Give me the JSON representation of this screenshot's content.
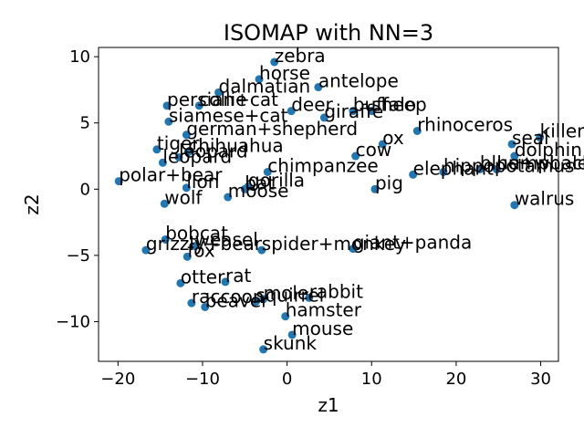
{
  "chart_data": {
    "type": "scatter",
    "title": "ISOMAP with NN=3",
    "xlabel": "z1",
    "ylabel": "z2",
    "xlim": [
      -22.3,
      32.1
    ],
    "ylim": [
      -13.0,
      10.7
    ],
    "xticks": [
      -20,
      -10,
      0,
      10,
      20,
      30
    ],
    "yticks": [
      -10,
      -5,
      0,
      5,
      10
    ],
    "grid": false,
    "marker_color": "#1f77b4",
    "points": [
      {
        "label": "zebra",
        "x": -1.5,
        "y": 9.6
      },
      {
        "label": "horse",
        "x": -3.3,
        "y": 8.3
      },
      {
        "label": "antelope",
        "x": 3.7,
        "y": 7.7
      },
      {
        "label": "dalmatian",
        "x": -8.1,
        "y": 7.3
      },
      {
        "label": "persian+cat",
        "x": -14.2,
        "y": 6.3
      },
      {
        "label": "collie",
        "x": -10.4,
        "y": 6.3
      },
      {
        "label": "deer",
        "x": 0.5,
        "y": 5.9
      },
      {
        "label": "giraffe",
        "x": 4.4,
        "y": 5.4
      },
      {
        "label": "buffalo",
        "x": 7.8,
        "y": 5.9
      },
      {
        "label": "sheep",
        "x": 10.0,
        "y": 5.9
      },
      {
        "label": "siamese+cat",
        "x": -14.0,
        "y": 5.1
      },
      {
        "label": "rhinoceros",
        "x": 15.4,
        "y": 4.4
      },
      {
        "label": "killer+whale",
        "x": 29.9,
        "y": 3.9
      },
      {
        "label": "german+shepherd",
        "x": -11.9,
        "y": 4.1
      },
      {
        "label": "seal",
        "x": 26.6,
        "y": 3.4
      },
      {
        "label": "tiger",
        "x": -15.4,
        "y": 3.0
      },
      {
        "label": "ox",
        "x": 11.3,
        "y": 3.4
      },
      {
        "label": "dolphin",
        "x": 26.9,
        "y": 2.5
      },
      {
        "label": "chihuahua",
        "x": -11.7,
        "y": 2.8
      },
      {
        "label": "leopard",
        "x": -12.8,
        "y": 2.4
      },
      {
        "label": "cow",
        "x": 8.1,
        "y": 2.5
      },
      {
        "label": "leopard",
        "x": -14.7,
        "y": 2.0
      },
      {
        "label": "chimpanzee",
        "x": -2.3,
        "y": 1.3
      },
      {
        "label": "elephant",
        "x": 14.9,
        "y": 1.1
      },
      {
        "label": "hippopotamus",
        "x": 18.5,
        "y": 1.3
      },
      {
        "label": "blue+whale",
        "x": 22.8,
        "y": 1.5
      },
      {
        "label": "humpback+whale",
        "x": 24.8,
        "y": 1.5
      },
      {
        "label": "polar+bear",
        "x": -19.9,
        "y": 0.6
      },
      {
        "label": "lion",
        "x": -11.9,
        "y": 0.1
      },
      {
        "label": "bat",
        "x": -5.0,
        "y": 0.0
      },
      {
        "label": "gorilla",
        "x": -4.6,
        "y": 0.2
      },
      {
        "label": "pig",
        "x": 10.4,
        "y": 0.0
      },
      {
        "label": "wolf",
        "x": -14.5,
        "y": -1.1
      },
      {
        "label": "moose",
        "x": -7.0,
        "y": -0.6
      },
      {
        "label": "walrus",
        "x": 26.9,
        "y": -1.2
      },
      {
        "label": "bobcat",
        "x": -14.4,
        "y": -3.8
      },
      {
        "label": "weasel",
        "x": -10.9,
        "y": -4.3
      },
      {
        "label": "grizzly+bear",
        "x": -16.7,
        "y": -4.6
      },
      {
        "label": "fox",
        "x": -11.8,
        "y": -5.1
      },
      {
        "label": "spider+monkey",
        "x": -3.0,
        "y": -4.6
      },
      {
        "label": "giant+panda",
        "x": 7.8,
        "y": -4.5
      },
      {
        "label": "otter",
        "x": -12.6,
        "y": -7.1
      },
      {
        "label": "rat",
        "x": -7.3,
        "y": -7.0
      },
      {
        "label": "rabbit",
        "x": 2.6,
        "y": -8.2
      },
      {
        "label": "mole",
        "x": -2.8,
        "y": -8.3
      },
      {
        "label": "raccoon",
        "x": -11.3,
        "y": -8.6
      },
      {
        "label": "beaver",
        "x": -9.7,
        "y": -8.9
      },
      {
        "label": "squirrel",
        "x": -3.7,
        "y": -8.5
      },
      {
        "label": "hamster",
        "x": -0.2,
        "y": -9.6
      },
      {
        "label": "mouse",
        "x": 0.6,
        "y": -11.0
      },
      {
        "label": "skunk",
        "x": -2.8,
        "y": -12.1
      }
    ]
  }
}
